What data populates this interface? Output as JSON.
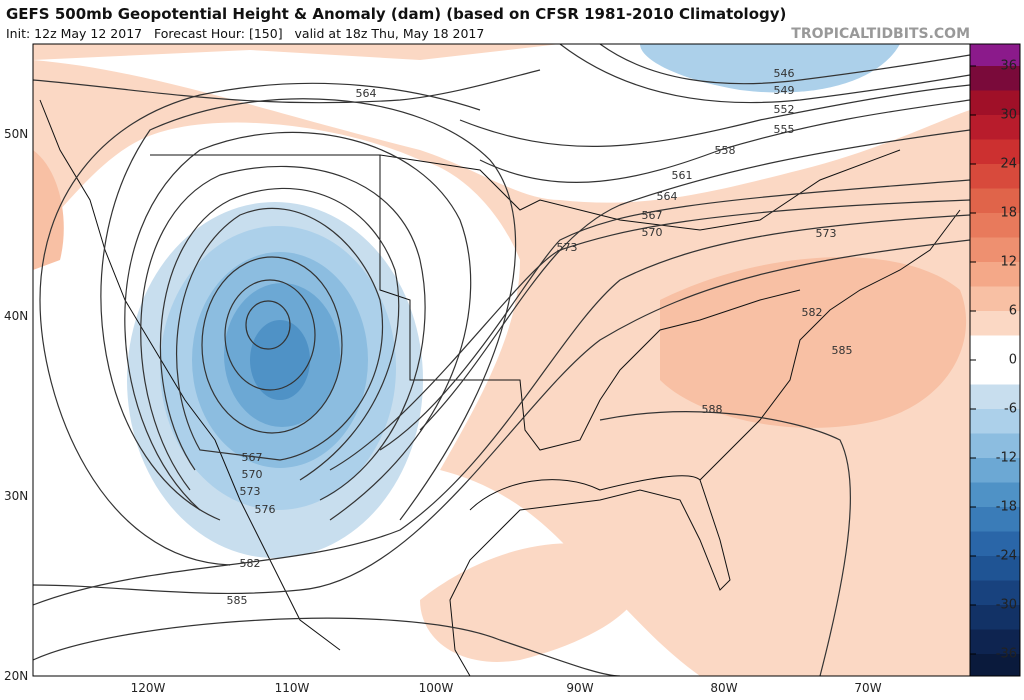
{
  "header": {
    "title": "GEFS 500mb Geopotential Height & Anomaly (dam) (based on CFSR 1981-2010 Climatology)",
    "subtitle": "Init: 12z May 12 2017   Forecast Hour: [150]   valid at 18z Thu, May 18 2017",
    "watermark": "TROPICALTIDBITS.COM"
  },
  "map": {
    "lat_labels": [
      "50N",
      "40N",
      "30N",
      "20N"
    ],
    "lon_labels": [
      "120W",
      "110W",
      "100W",
      "90W",
      "80W",
      "70W"
    ],
    "contour_labels": [
      "564",
      "546",
      "549",
      "552",
      "555",
      "558",
      "561",
      "564",
      "567",
      "570",
      "573",
      "573",
      "582",
      "585",
      "588",
      "567",
      "570",
      "573",
      "576",
      "582",
      "585"
    ]
  },
  "colorbar": {
    "labels": [
      36,
      30,
      24,
      18,
      12,
      6,
      0,
      -6,
      -12,
      -18,
      -24,
      -30,
      -36
    ],
    "colors": [
      "#8b1a8b",
      "#7a0a3a",
      "#a01028",
      "#b81c2c",
      "#cc3030",
      "#d84a3c",
      "#e0644a",
      "#e87a5c",
      "#ee9070",
      "#f4a888",
      "#f8c0a4",
      "#fbd8c4",
      "#ffffff",
      "#ffffff",
      "#c8deee",
      "#acd0ea",
      "#8cbde0",
      "#6ca8d4",
      "#4f92c6",
      "#3a7cb8",
      "#2a66a8",
      "#1f5494",
      "#18427e",
      "#123266",
      "#0e2450",
      "#0a1a3c"
    ]
  }
}
